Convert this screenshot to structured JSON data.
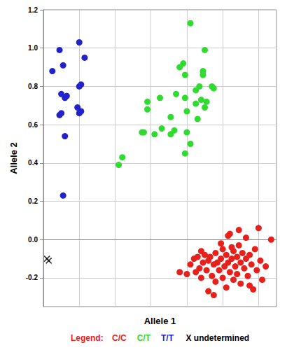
{
  "chart_data": {
    "type": "scatter",
    "x_label": "Allele 1",
    "y_label": "Allele 2",
    "legend_title": "Legend:",
    "legend": "bottom",
    "grid": true,
    "tick_labels": "y",
    "xlim": [
      0,
      1.3
    ],
    "xticks": [
      0,
      0.2,
      0.4,
      0.6,
      0.8,
      1,
      1.2
    ],
    "ylim": [
      -0.35,
      1.2
    ],
    "yticks": [
      -0.2,
      {
        "value": 0,
        "label": "0.0"
      },
      0.2,
      0.4,
      0.6,
      0.8,
      {
        "value": 1,
        "label": "1.0"
      },
      1.2
    ],
    "series": [
      {
        "name": "C/C",
        "color": "#e8201c",
        "marker": "circle",
        "x": [
          0.76,
          0.8,
          0.82,
          0.84,
          0.85,
          0.86,
          0.87,
          0.88,
          0.88,
          0.89,
          0.9,
          0.91,
          0.92,
          0.92,
          0.93,
          0.94,
          0.95,
          0.96,
          0.96,
          0.97,
          0.98,
          0.99,
          1.0,
          1.0,
          1.01,
          1.02,
          1.02,
          1.03,
          1.04,
          1.04,
          1.05,
          1.06,
          1.06,
          1.07,
          1.08,
          1.08,
          1.09,
          1.1,
          1.1,
          1.11,
          1.12,
          1.13,
          1.13,
          1.14,
          1.15,
          1.16,
          1.17,
          1.18,
          1.19,
          1.2,
          1.21,
          1.22,
          1.24,
          1.27,
          1.05,
          0.99,
          1.09,
          1.03,
          0.95,
          1.15
        ],
        "values": [
          -0.17,
          -0.18,
          -0.13,
          -0.1,
          -0.17,
          -0.09,
          -0.15,
          -0.2,
          -0.06,
          -0.12,
          -0.08,
          -0.16,
          -0.11,
          -0.27,
          -0.09,
          -0.19,
          -0.13,
          -0.07,
          -0.22,
          -0.12,
          -0.16,
          -0.1,
          -0.05,
          -0.2,
          -0.14,
          -0.08,
          -0.25,
          -0.12,
          -0.17,
          0.03,
          -0.1,
          -0.21,
          -0.06,
          -0.14,
          -0.09,
          -0.18,
          0.05,
          -0.12,
          -0.23,
          -0.07,
          -0.15,
          0.01,
          -0.1,
          -0.19,
          -0.08,
          -0.13,
          -0.26,
          -0.05,
          -0.16,
          0.06,
          -0.11,
          -0.21,
          -0.14,
          0.0,
          -0.04,
          -0.02,
          -0.03,
          0.02,
          -0.29,
          -0.24
        ]
      },
      {
        "name": "C/T",
        "color": "#2edb2e",
        "marker": "circle",
        "x": [
          0.42,
          0.44,
          0.55,
          0.56,
          0.58,
          0.58,
          0.62,
          0.65,
          0.66,
          0.71,
          0.71,
          0.74,
          0.76,
          0.78,
          0.79,
          0.79,
          0.8,
          0.8,
          0.79,
          0.82,
          0.82,
          0.85,
          0.85,
          0.87,
          0.89,
          0.89,
          0.9,
          0.88,
          0.9,
          0.91,
          0.94,
          0.95,
          0.86,
          0.73
        ],
        "values": [
          0.39,
          0.43,
          0.56,
          0.56,
          0.68,
          0.72,
          0.55,
          0.74,
          0.58,
          0.64,
          0.55,
          0.76,
          0.9,
          0.92,
          0.86,
          0.74,
          0.67,
          0.56,
          0.45,
          0.5,
          1.13,
          0.71,
          0.78,
          0.8,
          0.88,
          0.86,
          0.99,
          0.73,
          0.69,
          0.72,
          0.8,
          0.79,
          0.63,
          0.57
        ]
      },
      {
        "name": "T/T",
        "color": "#2222cc",
        "marker": "circle",
        "x": [
          0.05,
          0.11,
          0.09,
          0.2,
          0.23,
          0.1,
          0.12,
          0.13,
          0.09,
          0.1,
          0.2,
          0.21,
          0.19,
          0.21,
          0.2,
          0.12,
          0.11
        ],
        "values": [
          0.88,
          0.91,
          0.99,
          1.03,
          0.95,
          0.76,
          0.74,
          0.75,
          0.65,
          0.66,
          0.8,
          0.81,
          0.69,
          0.67,
          0.66,
          0.54,
          0.23
        ]
      },
      {
        "name": "X undetermined",
        "color": "#000000",
        "marker": "cross",
        "x": [
          0.02,
          0.03
        ],
        "values": [
          -0.1,
          -0.11
        ]
      }
    ]
  }
}
